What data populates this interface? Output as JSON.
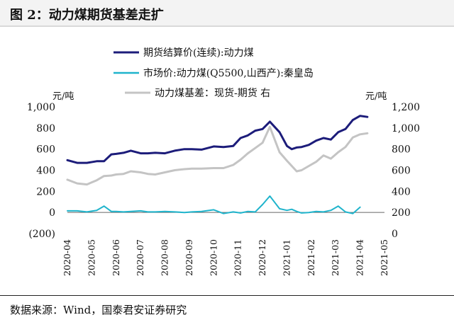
{
  "header": {
    "title": "图 2：动力煤期货基差走扩"
  },
  "footer": {
    "source": "数据来源：Wind，国泰君安证券研究"
  },
  "colors": {
    "futures": "#1c1c7a",
    "spot": "#1fb4cc",
    "basis": "#c4c4c4",
    "negative_label": "#c00000"
  },
  "chart_data": {
    "type": "line",
    "left_unit": "元/吨",
    "right_unit": "元/吨",
    "left_ticks": [
      "1,000",
      "800",
      "600",
      "400",
      "200",
      "0",
      "(200)"
    ],
    "left_tick_values": [
      1000,
      800,
      600,
      400,
      200,
      0,
      -200
    ],
    "right_ticks": [
      "1,200",
      "1,000",
      "800",
      "600",
      "400",
      "200",
      "0"
    ],
    "right_tick_values": [
      1200,
      1000,
      800,
      600,
      400,
      200,
      0
    ],
    "ylim_left": [
      -200,
      1000
    ],
    "ylim_right": [
      0,
      1200
    ],
    "x_tick_labels": [
      "2020-04",
      "2020-05",
      "2020-06",
      "2020-07",
      "2020-08",
      "2020-09",
      "2020-10",
      "2020-11",
      "2020-12",
      "2021-01",
      "2021-02",
      "2021-03",
      "2021-04",
      "2021-05"
    ],
    "x": [
      0,
      0.4,
      0.8,
      1.2,
      1.5,
      1.8,
      2.0,
      2.3,
      2.6,
      3.0,
      3.3,
      3.6,
      4.0,
      4.4,
      4.8,
      5.1,
      5.5,
      6.0,
      6.4,
      6.8,
      7.1,
      7.4,
      7.7,
      8.0,
      8.3,
      8.7,
      9.0,
      9.2,
      9.4,
      9.6,
      9.9,
      10.2,
      10.5,
      10.8,
      11.1,
      11.4,
      11.7,
      12.0,
      12.3,
      12.6,
      12.9,
      13.1,
      13.3,
      13.5
    ],
    "series": [
      {
        "name": "期货结算价(连续):动力煤",
        "axis": "left",
        "color": "#1c1c7a",
        "width": 3,
        "values": [
          495,
          470,
          470,
          485,
          485,
          550,
          555,
          565,
          585,
          560,
          560,
          565,
          560,
          585,
          600,
          600,
          595,
          625,
          620,
          630,
          705,
          730,
          775,
          790,
          860,
          760,
          630,
          600,
          615,
          620,
          640,
          680,
          705,
          690,
          760,
          790,
          875,
          915,
          905,
          null,
          null,
          null,
          null,
          null
        ]
      },
      {
        "name": "市场价:动力煤(Q5500,山西产):秦皇岛",
        "axis": "left",
        "color": "#1fb4cc",
        "width": 2,
        "values": [
          15,
          15,
          5,
          20,
          60,
          10,
          10,
          5,
          10,
          15,
          5,
          5,
          10,
          5,
          0,
          5,
          10,
          25,
          -10,
          5,
          -5,
          10,
          5,
          75,
          155,
          35,
          20,
          30,
          10,
          -5,
          0,
          10,
          5,
          20,
          60,
          5,
          -10,
          50,
          null,
          null,
          null,
          null,
          null,
          null
        ]
      },
      {
        "name": "动力煤基差：现货-期货 右",
        "axis": "right",
        "color": "#c4c4c4",
        "width": 3,
        "values": [
          510,
          475,
          465,
          505,
          545,
          550,
          560,
          565,
          590,
          580,
          565,
          560,
          580,
          600,
          610,
          615,
          615,
          620,
          620,
          650,
          700,
          760,
          810,
          860,
          1010,
          770,
          690,
          640,
          590,
          600,
          640,
          680,
          740,
          710,
          770,
          820,
          910,
          940,
          950,
          null,
          null,
          null,
          null,
          null
        ]
      }
    ]
  }
}
